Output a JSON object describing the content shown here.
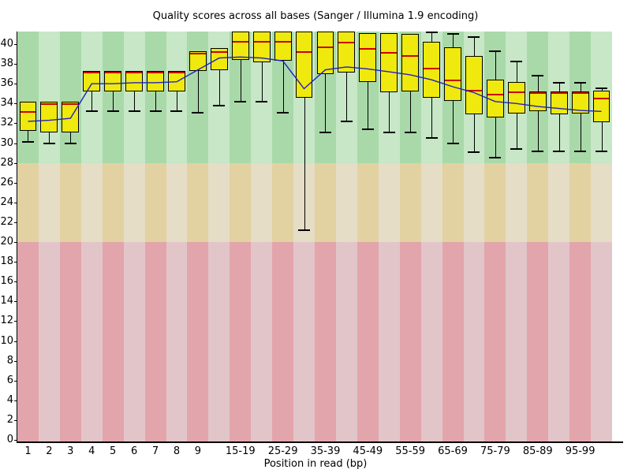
{
  "chart_data": {
    "type": "boxplot",
    "title": "Quality scores across all bases (Sanger / Illumina 1.9 encoding)",
    "xlabel": "Position in read (bp)",
    "ylabel": "",
    "ylim": [
      0,
      41.3
    ],
    "grid": false,
    "legend": "none",
    "y_ticks": [
      0,
      2,
      4,
      6,
      8,
      10,
      12,
      14,
      16,
      18,
      20,
      22,
      24,
      26,
      28,
      30,
      32,
      34,
      36,
      38,
      40
    ],
    "categories": [
      "1",
      "2",
      "3",
      "4",
      "5",
      "6",
      "7",
      "8",
      "9",
      "",
      "15-19",
      "",
      "25-29",
      "",
      "35-39",
      "",
      "45-49",
      "",
      "55-59",
      "",
      "65-69",
      "",
      "75-79",
      "",
      "85-89",
      "",
      "95-99",
      ""
    ],
    "zones": [
      {
        "name": "good",
        "from": 28,
        "to": 41.3,
        "colors": [
          "#a9d9a9",
          "#c7e7c7"
        ]
      },
      {
        "name": "ok",
        "from": 20,
        "to": 28,
        "colors": [
          "#e2d2a2",
          "#e5ddc5"
        ]
      },
      {
        "name": "poor",
        "from": 0,
        "to": 20,
        "colors": [
          "#e2a5ab",
          "#e2c5c9"
        ]
      }
    ],
    "series": [
      {
        "name": "upper_quartile",
        "values": [
          34.2,
          34.2,
          34.2,
          37.3,
          37.3,
          37.3,
          37.3,
          37.3,
          39.3,
          39.6,
          41.3,
          41.3,
          41.3,
          41.3,
          41.3,
          41.3,
          41.1,
          41.1,
          41.0,
          40.2,
          39.7,
          38.8,
          36.4,
          36.2,
          35.2,
          35.2,
          35.2,
          35.3
        ]
      },
      {
        "name": "median",
        "values": [
          33.2,
          34.0,
          34.0,
          37.2,
          37.2,
          37.2,
          37.2,
          37.2,
          39.1,
          39.3,
          40.3,
          40.3,
          40.3,
          39.3,
          39.8,
          40.2,
          39.6,
          39.2,
          38.9,
          37.6,
          36.4,
          35.4,
          35.0,
          35.2,
          35.1,
          35.1,
          35.1,
          34.6
        ]
      },
      {
        "name": "lower_quartile",
        "values": [
          31.2,
          31.1,
          31.1,
          35.2,
          35.2,
          35.2,
          35.2,
          35.2,
          37.3,
          37.4,
          38.4,
          38.2,
          38.3,
          34.6,
          37.0,
          37.1,
          36.2,
          35.1,
          35.2,
          34.6,
          34.3,
          32.9,
          32.6,
          33.0,
          33.2,
          32.9,
          33.0,
          32.1
        ]
      },
      {
        "name": "whisker_low",
        "values": [
          30.1,
          30.0,
          30.0,
          33.2,
          33.2,
          33.2,
          33.2,
          33.2,
          33.1,
          33.8,
          34.2,
          34.2,
          33.1,
          21.2,
          31.1,
          32.2,
          31.4,
          31.1,
          31.1,
          30.5,
          30.0,
          29.1,
          28.5,
          29.4,
          29.2,
          29.2,
          29.2,
          29.2
        ]
      },
      {
        "name": "whisker_high",
        "values": [
          null,
          null,
          null,
          null,
          null,
          null,
          null,
          null,
          null,
          null,
          null,
          null,
          null,
          null,
          null,
          null,
          null,
          null,
          null,
          41.3,
          41.1,
          40.8,
          39.4,
          38.3,
          36.9,
          36.2,
          36.2,
          35.6
        ]
      },
      {
        "name": "mean",
        "values": [
          32.2,
          32.3,
          32.5,
          36.0,
          36.0,
          36.1,
          36.1,
          36.2,
          37.4,
          38.6,
          38.7,
          38.6,
          38.3,
          35.5,
          37.4,
          37.7,
          37.5,
          37.2,
          36.9,
          36.4,
          35.7,
          35.1,
          34.2,
          34.0,
          33.7,
          33.5,
          33.3,
          33.2
        ]
      }
    ],
    "colors": {
      "box_fill": "#efe90e",
      "box_border": "#000000",
      "median": "#cc0000",
      "mean_line": "#2121bb",
      "axis": "#000000"
    }
  }
}
